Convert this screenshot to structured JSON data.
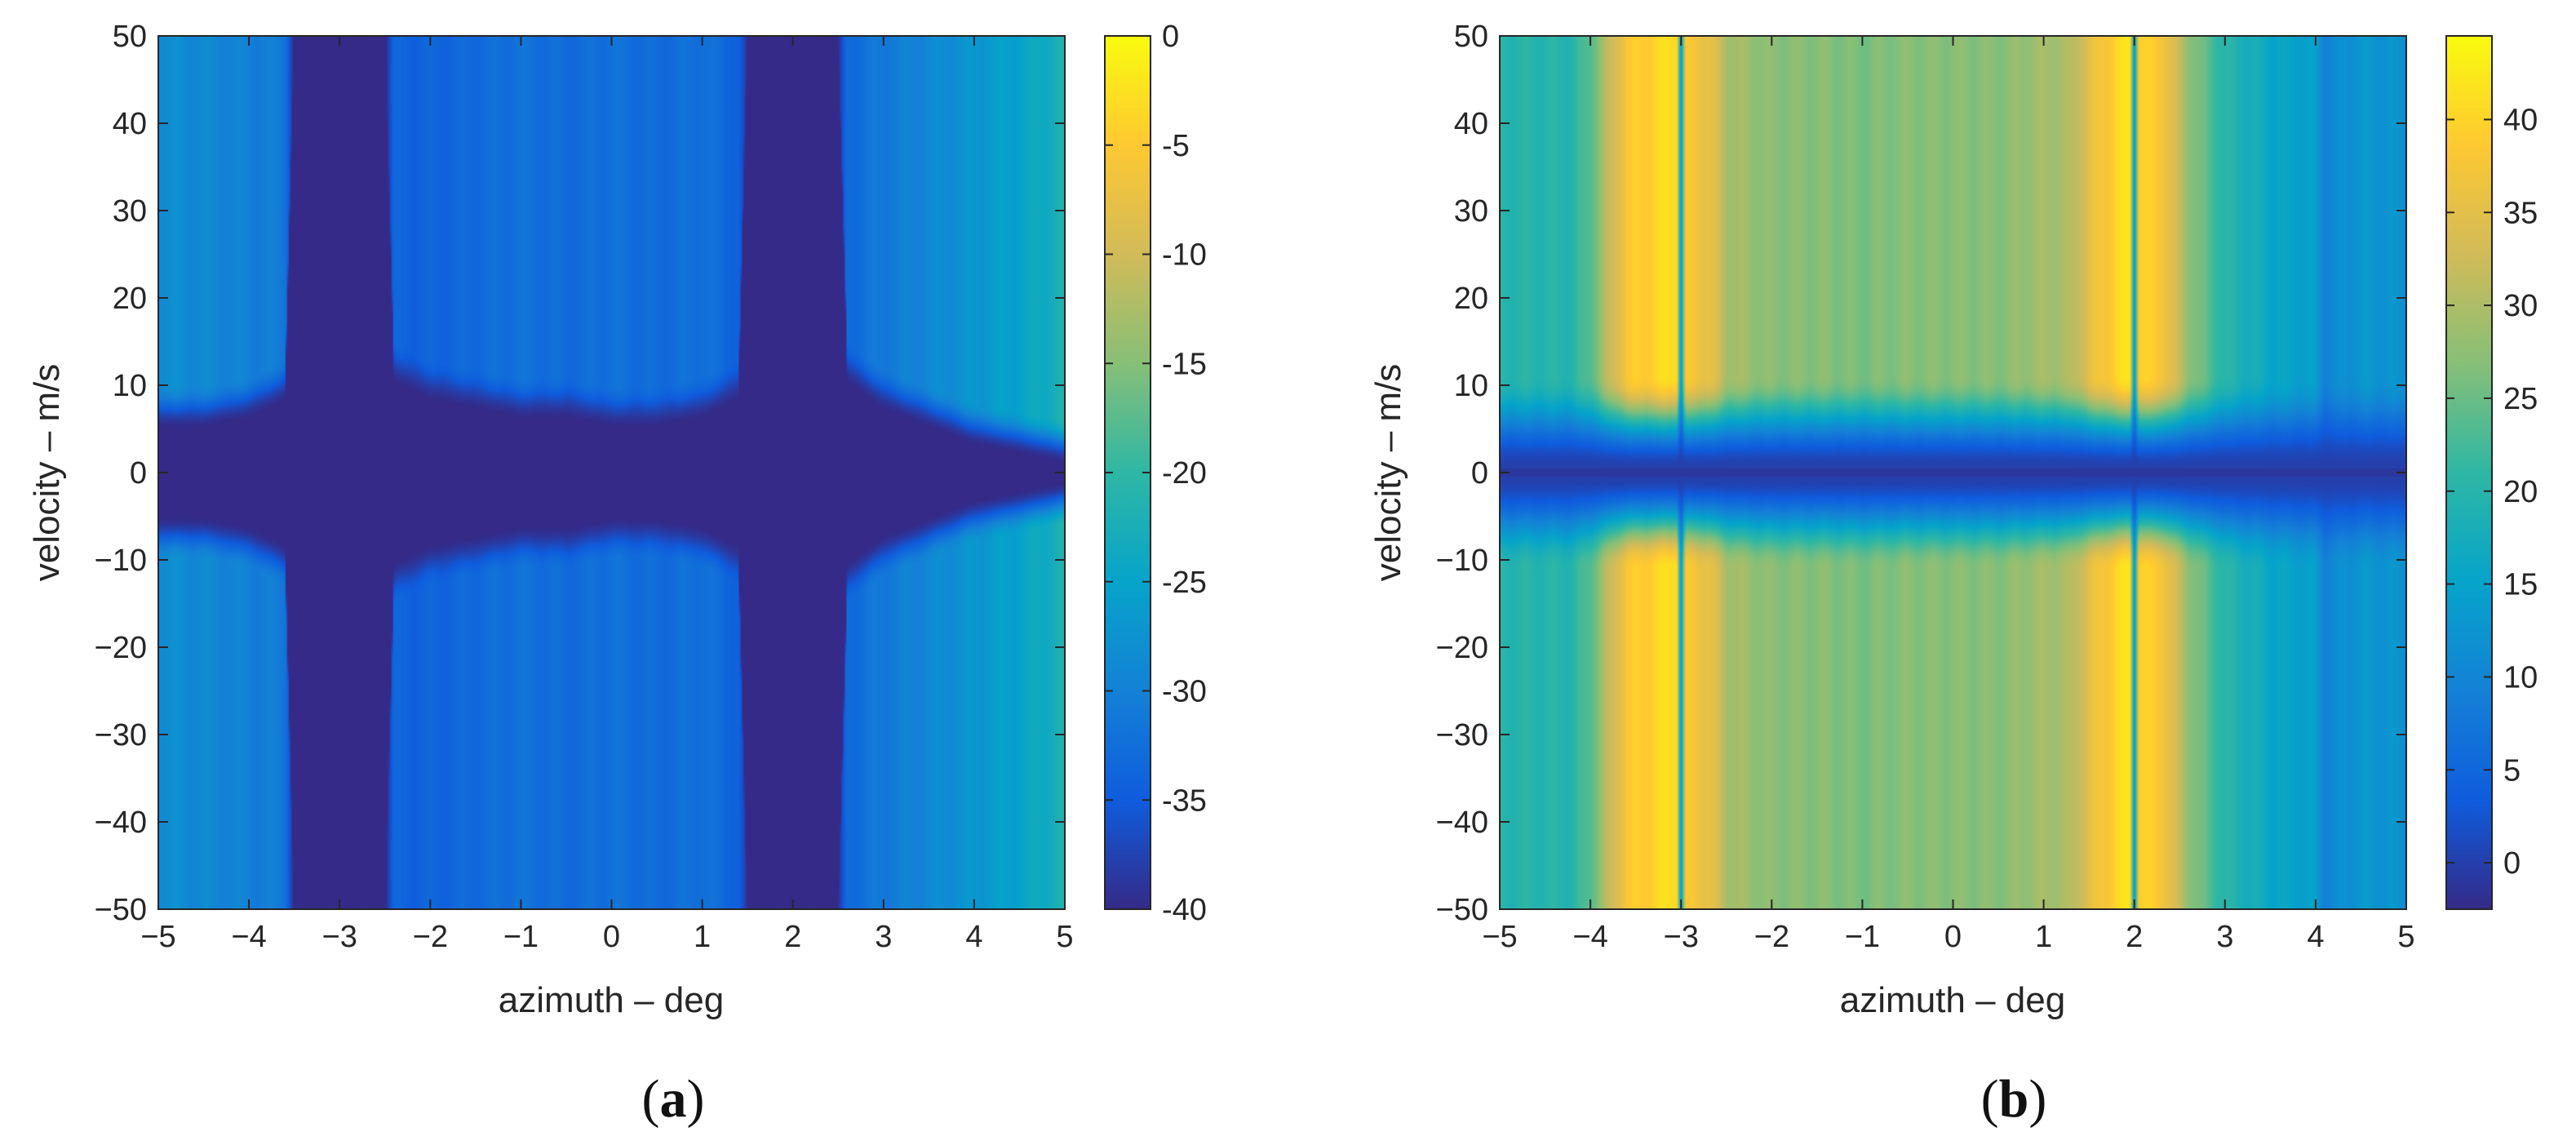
{
  "figure": {
    "panel_labels": [
      "(a)",
      "(b)"
    ]
  },
  "chart_data": [
    {
      "type": "heatmap",
      "panel": "(a)",
      "xlabel": "azimuth – deg",
      "ylabel": "velocity – m/s",
      "xlim": [
        -5,
        5
      ],
      "ylim": [
        -50,
        50
      ],
      "xticks": [
        -5,
        -4,
        -3,
        -2,
        -1,
        0,
        1,
        2,
        3,
        4,
        5
      ],
      "xtick_labels": [
        "−5",
        "−4",
        "−3",
        "−2",
        "−1",
        "0",
        "1",
        "2",
        "3",
        "4",
        "5"
      ],
      "yticks": [
        50,
        40,
        30,
        20,
        10,
        0,
        -10,
        -20,
        -30,
        -40,
        -50
      ],
      "ytick_labels": [
        "50",
        "40",
        "30",
        "20",
        "10",
        "0",
        "−10",
        "−20",
        "−30",
        "−40",
        "−50"
      ],
      "colorbar": {
        "colormap": "parula",
        "range": [
          -40,
          0
        ],
        "ticks": [
          0,
          -5,
          -10,
          -15,
          -20,
          -25,
          -30,
          -35,
          -40
        ],
        "tick_labels": [
          "0",
          "-5",
          "-10",
          "-15",
          "-20",
          "-25",
          "-30",
          "-35",
          "-40"
        ]
      },
      "profile_azimuth": [
        -5,
        -4.5,
        -4,
        -3.6,
        -3.5,
        -3,
        -2.5,
        -2.4,
        -2,
        -1.5,
        -1,
        -0.5,
        0,
        0.5,
        1,
        1.4,
        1.5,
        2,
        2.5,
        2.6,
        3,
        3.5,
        4,
        4.5,
        5
      ],
      "profile_value": [
        -28,
        -29,
        -30,
        -31,
        -40,
        -40,
        -40,
        -34,
        -34,
        -33,
        -32,
        -33,
        -32,
        -33,
        -32,
        -34,
        -40,
        -40,
        -40,
        -33,
        -31,
        -29,
        -27,
        -25,
        -22
      ],
      "notch_halfwidth_mps": [
        7,
        7,
        8,
        10,
        50,
        50,
        50,
        12,
        10,
        9,
        8,
        8,
        7,
        7,
        8,
        10,
        50,
        50,
        50,
        12,
        9,
        7,
        5,
        4,
        3
      ],
      "floor_value": -40
    },
    {
      "type": "heatmap",
      "panel": "(b)",
      "xlabel": "azimuth – deg",
      "ylabel": "velocity – m/s",
      "xlim": [
        -5,
        5
      ],
      "ylim": [
        -50,
        50
      ],
      "xticks": [
        -5,
        -4,
        -3,
        -2,
        -1,
        0,
        1,
        2,
        3,
        4,
        5
      ],
      "xtick_labels": [
        "−5",
        "−4",
        "−3",
        "−2",
        "−1",
        "0",
        "1",
        "2",
        "3",
        "4",
        "5"
      ],
      "yticks": [
        50,
        40,
        30,
        20,
        10,
        0,
        -10,
        -20,
        -30,
        -40,
        -50
      ],
      "ytick_labels": [
        "50",
        "40",
        "30",
        "20",
        "10",
        "0",
        "−10",
        "−20",
        "−30",
        "−40",
        "−50"
      ],
      "colorbar": {
        "colormap": "parula",
        "range": [
          -2.5,
          44.5
        ],
        "ticks": [
          40,
          35,
          30,
          25,
          20,
          15,
          10,
          5,
          0
        ],
        "tick_labels": [
          "40",
          "35",
          "30",
          "25",
          "20",
          "15",
          "10",
          "5",
          "0"
        ]
      },
      "profile_azimuth": [
        -5,
        -4.5,
        -4.2,
        -4,
        -3.6,
        -3.3,
        -3.05,
        -3,
        -2.95,
        -2.7,
        -2.5,
        -2.2,
        -2,
        -1.5,
        -1,
        -0.5,
        0,
        0.5,
        1,
        1.3,
        1.5,
        1.8,
        1.95,
        2,
        2.05,
        2.3,
        2.6,
        3,
        3.5,
        4,
        4.1,
        4.5,
        5
      ],
      "profile_value": [
        20,
        20,
        20,
        24,
        38,
        40,
        42,
        12,
        38,
        36,
        30,
        28,
        27,
        27,
        26,
        27,
        27,
        27,
        29,
        30,
        35,
        40,
        42,
        12,
        40,
        38,
        28,
        20,
        16,
        14,
        10,
        13,
        12
      ],
      "near_zero_value": 0,
      "zero_line_value": -1
    }
  ]
}
